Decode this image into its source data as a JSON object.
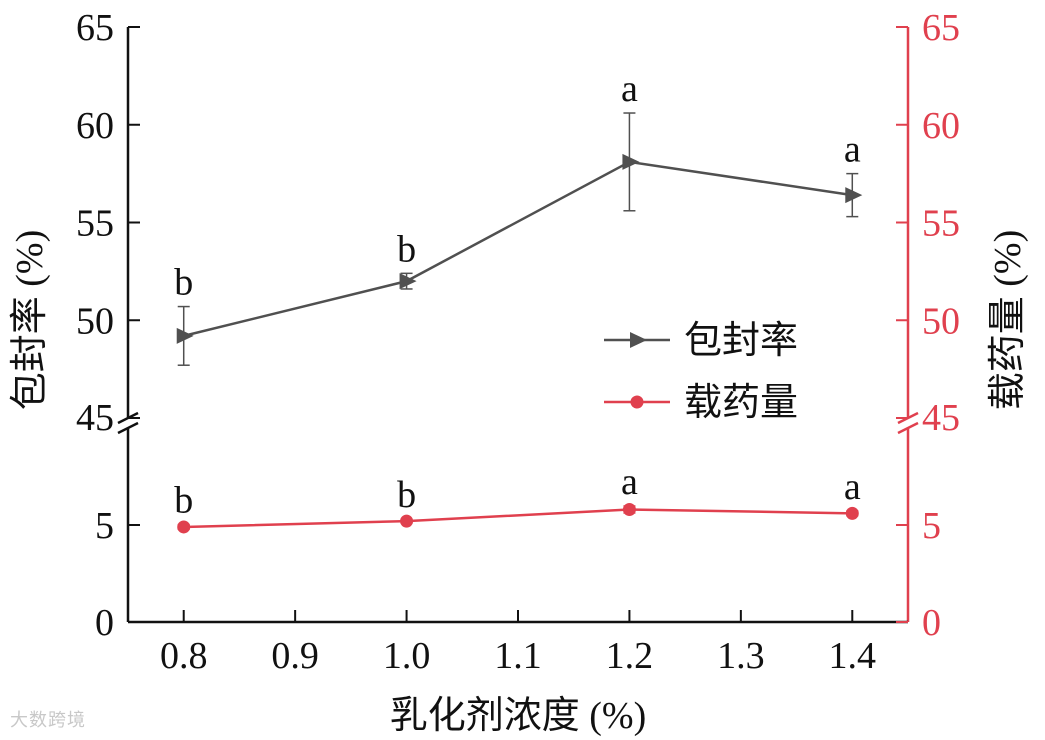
{
  "watermark": "大数跨境",
  "chart_data": {
    "type": "line",
    "x": [
      0.8,
      1.0,
      1.2,
      1.4
    ],
    "x_ticks": [
      "0.8",
      "0.9",
      "1.0",
      "1.1",
      "1.2",
      "1.3",
      "1.4"
    ],
    "xlabel": "乳化剂浓度 (%)",
    "ylabel_left": "包封率 (%)",
    "ylabel_right": "载药量 (%)",
    "y_ticks_left": [
      "65",
      "60",
      "55",
      "50",
      "45",
      "5",
      "0"
    ],
    "y_ticks_right": [
      "65",
      "60",
      "55",
      "50",
      "45",
      "5",
      "0"
    ],
    "ylim_lower": [
      0,
      10
    ],
    "ylim_upper": [
      45,
      65
    ],
    "axis_break": true,
    "grid": false,
    "legend_position": "center-right",
    "series": [
      {
        "name": "包封率",
        "axis": "left",
        "marker": "triangle-right",
        "color": "#505050",
        "values": [
          49.2,
          52.0,
          58.1,
          56.4
        ],
        "errors": [
          1.5,
          0.4,
          2.5,
          1.1
        ],
        "letters": [
          "b",
          "b",
          "a",
          "a"
        ]
      },
      {
        "name": "载药量",
        "axis": "right",
        "marker": "circle",
        "color": "#e0404e",
        "values": [
          4.9,
          5.2,
          5.8,
          5.6
        ],
        "errors": [
          0.12,
          0.1,
          0.18,
          0.12
        ],
        "letters": [
          "b",
          "b",
          "a",
          "a"
        ]
      }
    ]
  }
}
